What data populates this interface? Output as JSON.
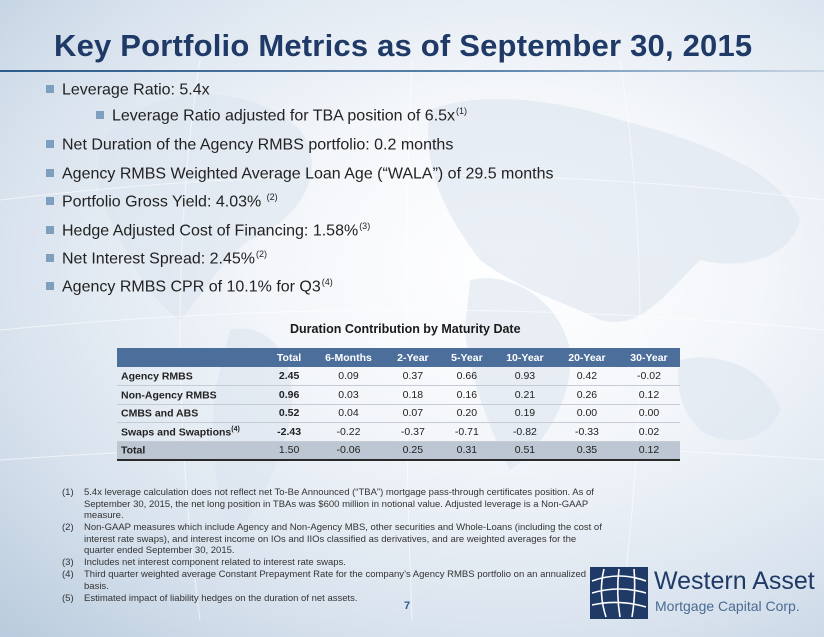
{
  "slide": {
    "title": "Key Portfolio Metrics as of September 30, 2015",
    "page_number": "7"
  },
  "bullets": [
    {
      "text": "Leverage Ratio: 5.4x",
      "sup": "",
      "level": 1
    },
    {
      "text": "Leverage Ratio adjusted for TBA position of 6.5x",
      "sup": "(1)",
      "level": 2
    },
    {
      "text": "Net Duration of the Agency RMBS portfolio: 0.2 months",
      "sup": "",
      "level": 1
    },
    {
      "text": "Agency RMBS Weighted Average Loan Age (“WALA”) of 29.5 months",
      "sup": "",
      "level": 1
    },
    {
      "text": "Portfolio Gross Yield: 4.03% ",
      "sup": "(2)",
      "level": 1
    },
    {
      "text": "Hedge Adjusted Cost of Financing: 1.58%",
      "sup": "(3)",
      "level": 1
    },
    {
      "text": "Net Interest Spread:  2.45%",
      "sup": "(2)",
      "level": 1
    },
    {
      "text": "Agency RMBS CPR of 10.1% for Q3",
      "sup": "(4)",
      "level": 1
    }
  ],
  "duration_table": {
    "title": "Duration Contribution by Maturity Date",
    "columns": [
      "",
      "Total",
      "6-Months",
      "2-Year",
      "5-Year",
      "10-Year",
      "20-Year",
      "30-Year"
    ],
    "rows": [
      {
        "label": "Agency RMBS",
        "sup": "",
        "values": [
          "2.45",
          "0.09",
          "0.37",
          "0.66",
          "0.93",
          "0.42",
          "-0.02"
        ]
      },
      {
        "label": "Non-Agency RMBS",
        "sup": "",
        "values": [
          "0.96",
          "0.03",
          "0.18",
          "0.16",
          "0.21",
          "0.26",
          "0.12"
        ]
      },
      {
        "label": "CMBS and ABS",
        "sup": "",
        "values": [
          "0.52",
          "0.04",
          "0.07",
          "0.20",
          "0.19",
          "0.00",
          "0.00"
        ]
      },
      {
        "label": "Swaps and Swaptions",
        "sup": "(4)",
        "values": [
          "-2.43",
          "-0.22",
          "-0.37",
          "-0.71",
          "-0.82",
          "-0.33",
          "0.02"
        ]
      },
      {
        "label": "Total",
        "sup": "",
        "values": [
          "1.50",
          "-0.06",
          "0.25",
          "0.31",
          "0.51",
          "0.35",
          "0.12"
        ]
      }
    ]
  },
  "footnotes": [
    {
      "num": "(1)",
      "text": "5.4x leverage calculation does not reflect net To-Be Announced (“TBA”) mortgage pass-through certificates position. As of September 30, 2015, the net  long position in TBAs was $600 million in notional value. Adjusted leverage is a Non-GAAP measure."
    },
    {
      "num": "(2)",
      "text": "Non-GAAP measures which include Agency and Non-Agency MBS, other securities and Whole-Loans (including the cost of interest rate swaps), and interest income on IOs and IIOs classified as derivatives, and are weighted averages for the quarter ended September 30, 2015."
    },
    {
      "num": "(3)",
      "text": "Includes net interest component related to interest rate swaps."
    },
    {
      "num": "(4)",
      "text": "Third quarter weighted average Constant Prepayment Rate for the company’s Agency RMBS portfolio on an annualized basis."
    },
    {
      "num": "(5)",
      "text": "Estimated impact of liability hedges on the duration of net assets."
    }
  ],
  "logo": {
    "line1": "Western Asset",
    "line2": "Mortgage Capital Corp.",
    "icon": "globe-grid-icon"
  },
  "colors": {
    "title": "#1f3a66",
    "bullet_marker": "#7f9fbf",
    "table_header": "#4b6e9b",
    "total_row": "#bcc7d3"
  }
}
